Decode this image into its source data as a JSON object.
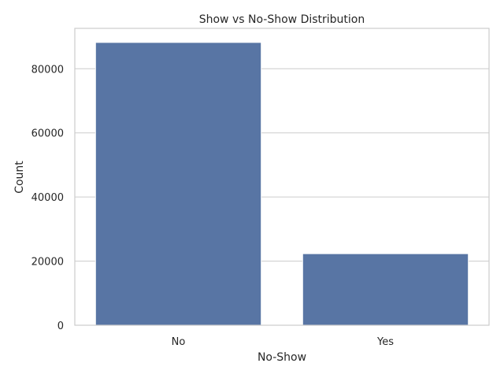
{
  "chart_data": {
    "type": "bar",
    "title": "Show vs No-Show Distribution",
    "xlabel": "No-Show",
    "ylabel": "Count",
    "categories": [
      "No",
      "Yes"
    ],
    "values": [
      88208,
      22319
    ],
    "ylim": [
      0,
      92600
    ],
    "yticks": [
      0,
      20000,
      40000,
      60000,
      80000
    ],
    "grid": true,
    "bar_color": "#5875a4",
    "grid_color": "#cccccc"
  }
}
